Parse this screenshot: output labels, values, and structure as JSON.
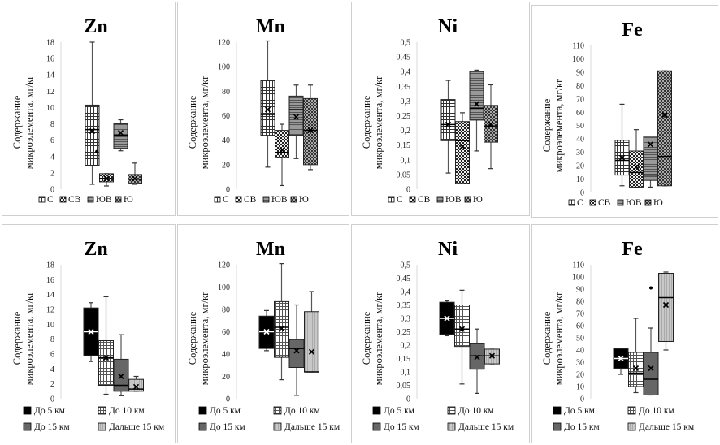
{
  "figure": {
    "ylabel_line1": "Содержание",
    "ylabel_line2": "микроэлемента, мг/кг"
  },
  "chart_data": [
    {
      "type": "box",
      "row": "top",
      "title": "Zn",
      "ylabel": "Содержание микроэлемента, мг/кг",
      "ylim": [
        0,
        18
      ],
      "yticks": [
        0,
        2,
        4,
        6,
        8,
        10,
        12,
        14,
        16,
        18
      ],
      "ytick_labels": [
        "0",
        "2",
        "4",
        "6",
        "8",
        "10",
        "12",
        "14",
        "16",
        "18"
      ],
      "legend": [
        "С",
        "СВ",
        "ЮВ",
        "Ю"
      ],
      "legend_position": "bottom",
      "series": [
        {
          "name": "С",
          "min": 0.6,
          "q1": 2.9,
          "median": 7.3,
          "q3": 10.3,
          "max": 18.0,
          "mean": 7.1,
          "outliers": []
        },
        {
          "name": "СВ",
          "min": 0.4,
          "q1": 0.9,
          "median": 1.3,
          "q3": 1.9,
          "max": 1.9,
          "mean": 1.3,
          "outliers": [
            4.6
          ]
        },
        {
          "name": "ЮВ",
          "min": 4.7,
          "q1": 5.0,
          "median": 6.6,
          "q3": 8.0,
          "max": 8.5,
          "mean": 6.9,
          "outliers": []
        },
        {
          "name": "Ю",
          "min": 0.6,
          "q1": 0.7,
          "median": 1.2,
          "q3": 1.8,
          "max": 3.2,
          "mean": 1.3,
          "outliers": []
        }
      ]
    },
    {
      "type": "box",
      "row": "top",
      "title": "Mn",
      "ylabel": "Содержание микроэлемента, мг/кг",
      "ylim": [
        0,
        120
      ],
      "yticks": [
        0,
        20,
        40,
        60,
        80,
        100,
        120
      ],
      "ytick_labels": [
        "0",
        "20",
        "40",
        "60",
        "80",
        "100",
        "120"
      ],
      "legend": [
        "С",
        "СВ",
        "ЮВ",
        "Ю"
      ],
      "legend_position": "bottom",
      "series": [
        {
          "name": "С",
          "min": 18,
          "q1": 44,
          "median": 61,
          "q3": 89,
          "max": 121,
          "mean": 65,
          "outliers": []
        },
        {
          "name": "СВ",
          "min": 3,
          "q1": 26,
          "median": 30,
          "q3": 48,
          "max": 53,
          "mean": 32,
          "outliers": []
        },
        {
          "name": "ЮВ",
          "min": 25,
          "q1": 44,
          "median": 65,
          "q3": 76,
          "max": 85,
          "mean": 59,
          "outliers": []
        },
        {
          "name": "Ю",
          "min": 16,
          "q1": 20,
          "median": 48,
          "q3": 74,
          "max": 85,
          "mean": 48,
          "outliers": []
        }
      ]
    },
    {
      "type": "box",
      "row": "top",
      "title": "Ni",
      "ylabel": "Содержание микроэлемента, мг/кг",
      "ylim": [
        0,
        0.5
      ],
      "yticks": [
        0,
        0.05,
        0.1,
        0.15,
        0.2,
        0.25,
        0.3,
        0.35,
        0.4,
        0.45,
        0.5
      ],
      "ytick_labels": [
        "0",
        "0,05",
        "0,1",
        "0,15",
        "0,2",
        "0,25",
        "0,3",
        "0,35",
        "0,4",
        "0,45",
        "0,5"
      ],
      "legend": [
        "С",
        "СВ",
        "ЮВ",
        "Ю"
      ],
      "legend_position": "bottom",
      "series": [
        {
          "name": "С",
          "min": 0.055,
          "q1": 0.165,
          "median": 0.22,
          "q3": 0.305,
          "max": 0.37,
          "mean": 0.22,
          "outliers": []
        },
        {
          "name": "СВ",
          "min": 0.02,
          "q1": 0.02,
          "median": 0.165,
          "q3": 0.23,
          "max": 0.26,
          "mean": 0.145,
          "outliers": []
        },
        {
          "name": "ЮВ",
          "min": 0.13,
          "q1": 0.235,
          "median": 0.275,
          "q3": 0.4,
          "max": 0.405,
          "mean": 0.29,
          "outliers": []
        },
        {
          "name": "Ю",
          "min": 0.07,
          "q1": 0.16,
          "median": 0.215,
          "q3": 0.285,
          "max": 0.355,
          "mean": 0.22,
          "outliers": []
        }
      ]
    },
    {
      "type": "box",
      "row": "top",
      "title": "Fe",
      "ylabel": "Содержание микроэлемента, мг/кг",
      "ylim": [
        0,
        110
      ],
      "yticks": [
        0,
        10,
        20,
        30,
        40,
        50,
        60,
        70,
        80,
        90,
        100,
        110
      ],
      "ytick_labels": [
        "0",
        "10",
        "20",
        "30",
        "40",
        "50",
        "60",
        "70",
        "80",
        "90",
        "100",
        "110"
      ],
      "legend": [
        "С",
        "СВ",
        "ЮВ",
        "Ю"
      ],
      "legend_position": "bottom",
      "series": [
        {
          "name": "С",
          "min": 5,
          "q1": 13,
          "median": 24,
          "q3": 39,
          "max": 66,
          "mean": 26,
          "outliers": []
        },
        {
          "name": "СВ",
          "min": 4,
          "q1": 4,
          "median": 15,
          "q3": 31,
          "max": 47,
          "mean": 19,
          "outliers": []
        },
        {
          "name": "ЮВ",
          "min": 4,
          "q1": 9,
          "median": 13,
          "q3": 42,
          "max": 42,
          "mean": 36,
          "outliers": []
        },
        {
          "name": "Ю",
          "min": 5,
          "q1": 5,
          "median": 27,
          "q3": 91,
          "max": 91,
          "mean": 58,
          "outliers": []
        }
      ]
    },
    {
      "type": "box",
      "row": "bottom",
      "title": "Zn",
      "ylabel": "Содержание микроэлемента, мг/кг",
      "ylim": [
        0,
        18
      ],
      "yticks": [
        0,
        2,
        4,
        6,
        8,
        10,
        12,
        14,
        16,
        18
      ],
      "ytick_labels": [
        "0",
        "2",
        "4",
        "6",
        "8",
        "10",
        "12",
        "14",
        "16",
        "18"
      ],
      "legend": [
        "До 5 км",
        "До 10 км",
        "До 15 км",
        "Дальше 15 км"
      ],
      "legend_position": "bottom",
      "series": [
        {
          "name": "До 5 км",
          "min": 5.0,
          "q1": 5.8,
          "median": 9.0,
          "q3": 12.2,
          "max": 12.9,
          "mean": 9.0,
          "outliers": []
        },
        {
          "name": "До 10 км",
          "min": 0.6,
          "q1": 1.8,
          "median": 5.5,
          "q3": 7.8,
          "max": 13.7,
          "mean": 5.5,
          "outliers": []
        },
        {
          "name": "До 15 км",
          "min": 0.4,
          "q1": 1.0,
          "median": 1.8,
          "q3": 5.3,
          "max": 8.6,
          "mean": 3.0,
          "outliers": []
        },
        {
          "name": "Дальше 15 км",
          "min": 1.0,
          "q1": 1.0,
          "median": 1.3,
          "q3": 2.6,
          "max": 3.0,
          "mean": 1.6,
          "outliers": []
        }
      ]
    },
    {
      "type": "box",
      "row": "bottom",
      "title": "Mn",
      "ylabel": "Содержание микроэлемента, мг/кг",
      "ylim": [
        0,
        120
      ],
      "yticks": [
        0,
        20,
        40,
        60,
        80,
        100,
        120
      ],
      "ytick_labels": [
        "0",
        "20",
        "40",
        "60",
        "80",
        "100",
        "120"
      ],
      "legend": [
        "До 5 км",
        "До 10 км",
        "До 15 км",
        "Дальше 15 км"
      ],
      "legend_position": "bottom",
      "series": [
        {
          "name": "До 5 км",
          "min": 43,
          "q1": 45,
          "median": 60,
          "q3": 74,
          "max": 79,
          "mean": 60,
          "outliers": []
        },
        {
          "name": "До 10 км",
          "min": 17,
          "q1": 37,
          "median": 64,
          "q3": 87,
          "max": 121,
          "mean": 63,
          "outliers": []
        },
        {
          "name": "До 15 км",
          "min": 3,
          "q1": 28,
          "median": 45,
          "q3": 53,
          "max": 84,
          "mean": 43,
          "outliers": []
        },
        {
          "name": "Дальше 15 км",
          "min": 24,
          "q1": 24,
          "median": 24,
          "q3": 78,
          "max": 96,
          "mean": 42,
          "outliers": []
        }
      ]
    },
    {
      "type": "box",
      "row": "bottom",
      "title": "Ni",
      "ylabel": "Содержание микроэлемента, мг/кг",
      "ylim": [
        0,
        0.5
      ],
      "yticks": [
        0,
        0.05,
        0.1,
        0.15,
        0.2,
        0.25,
        0.3,
        0.35,
        0.4,
        0.45,
        0.5
      ],
      "ytick_labels": [
        "0",
        "0,05",
        "0,1",
        "0,15",
        "0,2",
        "0,25",
        "0,3",
        "0,35",
        "0,4",
        "0,45",
        "0,5"
      ],
      "legend": [
        "До 5 км",
        "До 10 км",
        "До 15 км",
        "Дальше 15 км"
      ],
      "legend_position": "bottom",
      "series": [
        {
          "name": "До 5 км",
          "min": 0.235,
          "q1": 0.24,
          "median": 0.3,
          "q3": 0.36,
          "max": 0.365,
          "mean": 0.3,
          "outliers": []
        },
        {
          "name": "До 10 км",
          "min": 0.055,
          "q1": 0.195,
          "median": 0.26,
          "q3": 0.35,
          "max": 0.405,
          "mean": 0.26,
          "outliers": []
        },
        {
          "name": "До 15 км",
          "min": 0.02,
          "q1": 0.11,
          "median": 0.16,
          "q3": 0.205,
          "max": 0.26,
          "mean": 0.155,
          "outliers": []
        },
        {
          "name": "Дальше 15 км",
          "min": 0.13,
          "q1": 0.13,
          "median": 0.16,
          "q3": 0.185,
          "max": 0.185,
          "mean": 0.16,
          "outliers": []
        }
      ]
    },
    {
      "type": "box",
      "row": "bottom",
      "title": "Fe",
      "ylabel": "Содержание микроэлемента, мг/кг",
      "ylim": [
        0,
        110
      ],
      "yticks": [
        0,
        10,
        20,
        30,
        40,
        50,
        60,
        70,
        80,
        90,
        100,
        110
      ],
      "ytick_labels": [
        "0",
        "10",
        "20",
        "30",
        "40",
        "50",
        "60",
        "70",
        "80",
        "90",
        "100",
        "110"
      ],
      "legend": [
        "До 5 км",
        "До 10 км",
        "До 15 км",
        "Дальше 15 км"
      ],
      "legend_position": "bottom",
      "series": [
        {
          "name": "До 5 км",
          "min": 20,
          "q1": 25,
          "median": 33,
          "q3": 41,
          "max": 41,
          "mean": 33,
          "outliers": []
        },
        {
          "name": "До 10 км",
          "min": 5,
          "q1": 10,
          "median": 21,
          "q3": 38,
          "max": 66,
          "mean": 25,
          "outliers": []
        },
        {
          "name": "До 15 км",
          "min": 3,
          "q1": 3,
          "median": 16,
          "q3": 38,
          "max": 58,
          "mean": 25,
          "outliers": [
            91
          ]
        },
        {
          "name": "Дальше 15 км",
          "min": 40,
          "q1": 47,
          "median": 83,
          "q3": 103,
          "max": 104,
          "mean": 77,
          "outliers": []
        }
      ]
    }
  ]
}
